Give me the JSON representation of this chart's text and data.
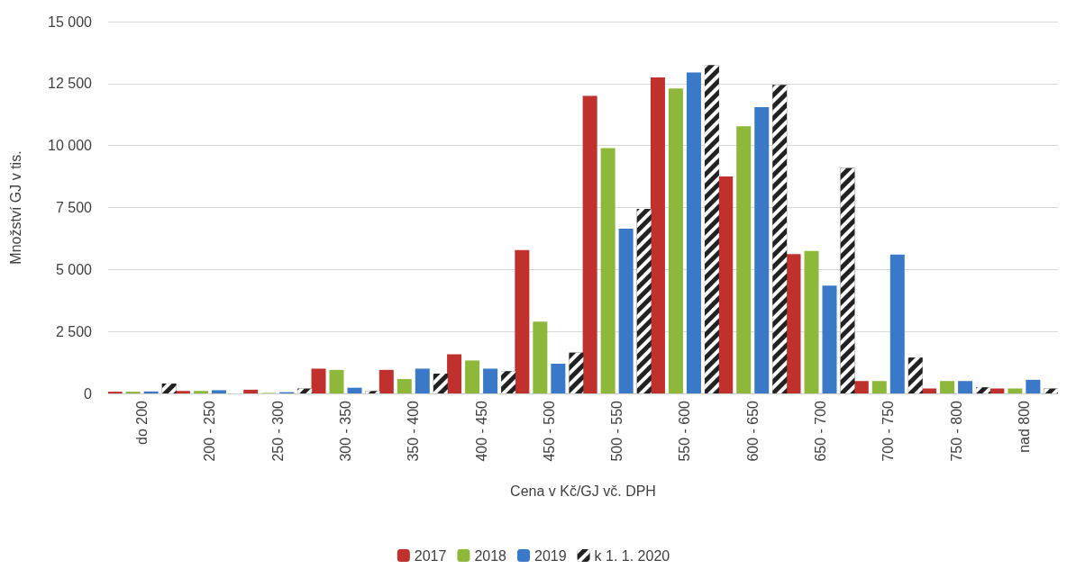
{
  "chart_data": {
    "type": "bar",
    "xlabel": "Cena v Kč/GJ vč. DPH",
    "ylabel": "Množství GJ v tis.",
    "categories": [
      "do 200",
      "200 - 250",
      "250 - 300",
      "300 - 350",
      "350 - 400",
      "400 - 450",
      "450 - 500",
      "500 - 550",
      "550 - 600",
      "600 - 650",
      "650 - 700",
      "700 - 750",
      "750 - 800",
      "nad 800"
    ],
    "series": [
      {
        "name": "2017",
        "color": "#c0302c",
        "values": [
          70,
          100,
          150,
          1000,
          950,
          1580,
          5780,
          12000,
          12750,
          8750,
          5620,
          500,
          200,
          200
        ]
      },
      {
        "name": "2018",
        "color": "#8db83a",
        "values": [
          70,
          100,
          20,
          950,
          580,
          1330,
          2900,
          9900,
          12300,
          10780,
          5750,
          500,
          500,
          200
        ]
      },
      {
        "name": "2019",
        "color": "#3a78c8",
        "values": [
          80,
          130,
          50,
          230,
          1000,
          1000,
          1200,
          6650,
          12950,
          11550,
          4350,
          5600,
          500,
          550
        ]
      },
      {
        "name": "k 1. 1. 2020",
        "color": "#222222",
        "values": [
          400,
          null,
          200,
          100,
          800,
          900,
          1650,
          7450,
          13250,
          12450,
          9100,
          1450,
          250,
          200
        ]
      }
    ],
    "ylim": [
      0,
      15000
    ],
    "yticks": [
      {
        "value": 0,
        "label": "0"
      },
      {
        "value": 2500,
        "label": "2 500"
      },
      {
        "value": 5000,
        "label": "5 000"
      },
      {
        "value": 7500,
        "label": "7 500"
      },
      {
        "value": 10000,
        "label": "10 000"
      },
      {
        "value": 12500,
        "label": "12 500"
      },
      {
        "value": 15000,
        "label": "15 000"
      }
    ],
    "grid": "y",
    "legend": "bottom"
  }
}
